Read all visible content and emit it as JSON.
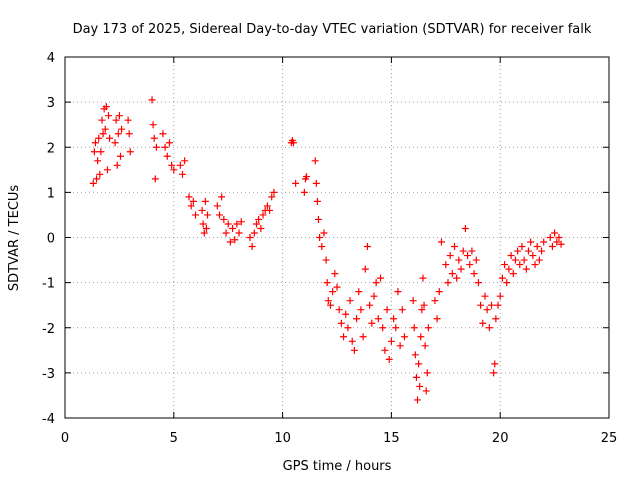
{
  "chart_data": {
    "type": "scatter",
    "title": "Day 173 of 2025, Sidereal Day-to-day VTEC variation (SDTVAR) for receiver falk",
    "xlabel": "GPS time / hours",
    "ylabel": "SDTVAR / TECUs",
    "xlim": [
      0,
      25
    ],
    "ylim": [
      -4,
      4
    ],
    "xticks": [
      0,
      5,
      10,
      15,
      20,
      25
    ],
    "yticks": [
      -4,
      -3,
      -2,
      -1,
      0,
      1,
      2,
      3,
      4
    ],
    "grid": true,
    "marker": "plus",
    "color": "#ff0000",
    "series": [
      {
        "name": "SDTVAR",
        "points": [
          [
            1.3,
            1.2
          ],
          [
            1.35,
            1.9
          ],
          [
            1.4,
            2.1
          ],
          [
            1.45,
            1.3
          ],
          [
            1.5,
            1.7
          ],
          [
            1.55,
            2.2
          ],
          [
            1.6,
            1.4
          ],
          [
            1.65,
            1.9
          ],
          [
            1.7,
            2.6
          ],
          [
            1.75,
            2.3
          ],
          [
            1.8,
            2.85
          ],
          [
            1.85,
            2.4
          ],
          [
            1.9,
            2.9
          ],
          [
            1.95,
            1.5
          ],
          [
            2.0,
            2.7
          ],
          [
            2.05,
            2.2
          ],
          [
            2.3,
            2.1
          ],
          [
            2.35,
            2.6
          ],
          [
            2.4,
            1.6
          ],
          [
            2.45,
            2.3
          ],
          [
            2.5,
            2.7
          ],
          [
            2.55,
            1.8
          ],
          [
            2.6,
            2.4
          ],
          [
            2.9,
            2.6
          ],
          [
            2.95,
            2.3
          ],
          [
            3.0,
            1.9
          ],
          [
            4.0,
            3.05
          ],
          [
            4.05,
            2.5
          ],
          [
            4.1,
            2.2
          ],
          [
            4.15,
            1.3
          ],
          [
            4.2,
            2.0
          ],
          [
            4.5,
            2.3
          ],
          [
            4.6,
            2.0
          ],
          [
            4.7,
            1.8
          ],
          [
            4.8,
            2.1
          ],
          [
            4.9,
            1.6
          ],
          [
            5.0,
            1.5
          ],
          [
            5.3,
            1.6
          ],
          [
            5.4,
            1.4
          ],
          [
            5.5,
            1.7
          ],
          [
            5.7,
            0.9
          ],
          [
            5.8,
            0.7
          ],
          [
            5.9,
            0.8
          ],
          [
            6.0,
            0.5
          ],
          [
            6.3,
            0.6
          ],
          [
            6.35,
            0.3
          ],
          [
            6.4,
            0.1
          ],
          [
            6.45,
            0.8
          ],
          [
            6.5,
            0.2
          ],
          [
            6.55,
            0.5
          ],
          [
            7.0,
            0.7
          ],
          [
            7.1,
            0.5
          ],
          [
            7.2,
            0.9
          ],
          [
            7.3,
            0.4
          ],
          [
            7.4,
            0.1
          ],
          [
            7.5,
            0.3
          ],
          [
            7.6,
            -0.1
          ],
          [
            7.7,
            0.2
          ],
          [
            7.8,
            -0.05
          ],
          [
            7.9,
            0.3
          ],
          [
            8.0,
            0.1
          ],
          [
            8.1,
            0.35
          ],
          [
            8.5,
            0.0
          ],
          [
            8.6,
            -0.2
          ],
          [
            8.7,
            0.1
          ],
          [
            8.8,
            0.3
          ],
          [
            8.9,
            0.4
          ],
          [
            9.0,
            0.2
          ],
          [
            9.1,
            0.5
          ],
          [
            9.2,
            0.6
          ],
          [
            9.3,
            0.7
          ],
          [
            9.4,
            0.6
          ],
          [
            9.5,
            0.9
          ],
          [
            9.6,
            1.0
          ],
          [
            10.4,
            2.1
          ],
          [
            10.45,
            2.15
          ],
          [
            10.5,
            2.1
          ],
          [
            10.6,
            1.2
          ],
          [
            11.0,
            1.0
          ],
          [
            11.05,
            1.3
          ],
          [
            11.1,
            1.35
          ],
          [
            11.5,
            1.7
          ],
          [
            11.55,
            1.2
          ],
          [
            11.6,
            0.8
          ],
          [
            11.65,
            0.4
          ],
          [
            11.7,
            0.0
          ],
          [
            11.8,
            -0.2
          ],
          [
            11.9,
            0.1
          ],
          [
            12.0,
            -0.5
          ],
          [
            12.05,
            -1.0
          ],
          [
            12.1,
            -1.4
          ],
          [
            12.2,
            -1.5
          ],
          [
            12.3,
            -1.2
          ],
          [
            12.4,
            -0.8
          ],
          [
            12.5,
            -1.1
          ],
          [
            12.6,
            -1.6
          ],
          [
            12.7,
            -1.9
          ],
          [
            12.8,
            -2.2
          ],
          [
            12.9,
            -1.7
          ],
          [
            13.0,
            -2.0
          ],
          [
            13.1,
            -1.4
          ],
          [
            13.2,
            -2.3
          ],
          [
            13.3,
            -2.5
          ],
          [
            13.4,
            -1.8
          ],
          [
            13.5,
            -1.2
          ],
          [
            13.6,
            -1.6
          ],
          [
            13.7,
            -2.2
          ],
          [
            13.8,
            -0.7
          ],
          [
            13.9,
            -0.2
          ],
          [
            14.0,
            -1.5
          ],
          [
            14.1,
            -1.9
          ],
          [
            14.2,
            -1.3
          ],
          [
            14.3,
            -1.0
          ],
          [
            14.4,
            -1.8
          ],
          [
            14.5,
            -0.9
          ],
          [
            14.6,
            -2.0
          ],
          [
            14.7,
            -2.5
          ],
          [
            14.8,
            -1.6
          ],
          [
            14.9,
            -2.7
          ],
          [
            15.0,
            -2.3
          ],
          [
            15.1,
            -1.8
          ],
          [
            15.2,
            -2.0
          ],
          [
            15.3,
            -1.2
          ],
          [
            15.4,
            -2.4
          ],
          [
            15.5,
            -1.6
          ],
          [
            15.6,
            -2.2
          ],
          [
            16.0,
            -1.4
          ],
          [
            16.05,
            -2.0
          ],
          [
            16.1,
            -2.6
          ],
          [
            16.15,
            -3.1
          ],
          [
            16.2,
            -3.6
          ],
          [
            16.25,
            -2.8
          ],
          [
            16.3,
            -3.3
          ],
          [
            16.35,
            -2.2
          ],
          [
            16.4,
            -1.6
          ],
          [
            16.45,
            -0.9
          ],
          [
            16.5,
            -1.5
          ],
          [
            16.55,
            -2.4
          ],
          [
            16.6,
            -3.4
          ],
          [
            16.65,
            -3.0
          ],
          [
            16.7,
            -2.0
          ],
          [
            17.0,
            -1.4
          ],
          [
            17.1,
            -1.8
          ],
          [
            17.2,
            -1.2
          ],
          [
            17.3,
            -0.1
          ],
          [
            17.5,
            -0.6
          ],
          [
            17.6,
            -1.0
          ],
          [
            17.7,
            -0.4
          ],
          [
            17.8,
            -0.8
          ],
          [
            17.9,
            -0.2
          ],
          [
            18.0,
            -0.9
          ],
          [
            18.1,
            -0.5
          ],
          [
            18.2,
            -0.7
          ],
          [
            18.3,
            -0.3
          ],
          [
            18.4,
            0.2
          ],
          [
            18.5,
            -0.4
          ],
          [
            18.6,
            -0.6
          ],
          [
            18.7,
            -0.3
          ],
          [
            18.8,
            -0.8
          ],
          [
            18.9,
            -0.5
          ],
          [
            19.0,
            -1.0
          ],
          [
            19.1,
            -1.5
          ],
          [
            19.2,
            -1.9
          ],
          [
            19.3,
            -1.3
          ],
          [
            19.4,
            -1.6
          ],
          [
            19.5,
            -2.0
          ],
          [
            19.6,
            -1.5
          ],
          [
            19.7,
            -3.0
          ],
          [
            19.75,
            -2.8
          ],
          [
            19.8,
            -1.8
          ],
          [
            19.9,
            -1.5
          ],
          [
            20.0,
            -1.3
          ],
          [
            20.1,
            -0.9
          ],
          [
            20.2,
            -0.6
          ],
          [
            20.3,
            -1.0
          ],
          [
            20.4,
            -0.7
          ],
          [
            20.5,
            -0.4
          ],
          [
            20.6,
            -0.8
          ],
          [
            20.7,
            -0.5
          ],
          [
            20.8,
            -0.3
          ],
          [
            20.9,
            -0.6
          ],
          [
            21.0,
            -0.2
          ],
          [
            21.1,
            -0.5
          ],
          [
            21.2,
            -0.7
          ],
          [
            21.3,
            -0.3
          ],
          [
            21.4,
            -0.1
          ],
          [
            21.5,
            -0.4
          ],
          [
            21.6,
            -0.6
          ],
          [
            21.7,
            -0.2
          ],
          [
            21.8,
            -0.5
          ],
          [
            21.9,
            -0.3
          ],
          [
            22.0,
            -0.1
          ],
          [
            22.3,
            0.0
          ],
          [
            22.4,
            -0.2
          ],
          [
            22.5,
            0.1
          ],
          [
            22.6,
            -0.1
          ],
          [
            22.7,
            0.0
          ],
          [
            22.8,
            -0.15
          ]
        ]
      }
    ]
  }
}
